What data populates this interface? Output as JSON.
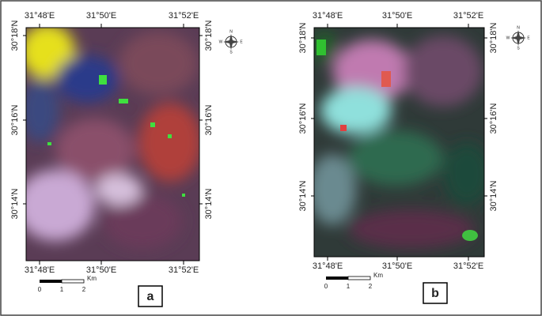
{
  "panels": [
    {
      "label": "a",
      "top_ticks": [
        "31°48'E",
        "31°50'E",
        "31°52'E"
      ],
      "bottom_ticks": [
        "31°48'E",
        "31°50'E",
        "31°52'E"
      ],
      "left_ticks": [
        "30°18'N",
        "30°16'N",
        "30°14'N"
      ],
      "right_ticks": [
        "30°18'N",
        "30°16'N",
        "30°14'N"
      ],
      "scale": {
        "labels": [
          "0",
          "1",
          "2"
        ],
        "unit": "Km"
      },
      "compass": {
        "n": "N",
        "e": "E",
        "s": "S",
        "w": "W"
      }
    },
    {
      "label": "b",
      "top_ticks": [
        "31°48'E",
        "31°50'E",
        "31°52'E"
      ],
      "bottom_ticks": [
        "31°48'E",
        "31°50'E",
        "31°52'E"
      ],
      "left_ticks": [
        "30°18'N",
        "30°16'N",
        "30°14'N"
      ],
      "right_ticks": [
        "30°18'N",
        "30°16'N",
        "30°14'N"
      ],
      "scale": {
        "labels": [
          "0",
          "1",
          "2"
        ],
        "unit": "Km"
      },
      "compass": {
        "n": "N",
        "e": "E",
        "s": "S",
        "w": "W"
      }
    }
  ]
}
